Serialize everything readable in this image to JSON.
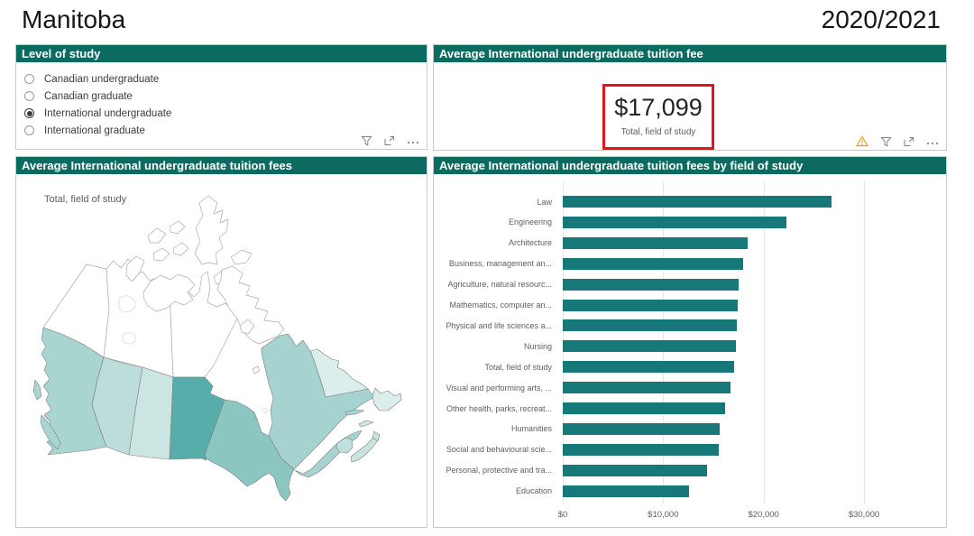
{
  "page": {
    "title": "Manitoba",
    "year": "2020/2021"
  },
  "colors": {
    "header_bg": "#0D6A60",
    "bar": "#17787A",
    "panel_border": "#C9C9C9",
    "highlight_box": "#E6131E",
    "warning_icon": "#E2A400",
    "icon_gray": "#808080",
    "territory_outline": "#ABABAB",
    "province_outline": "#7E7E7E"
  },
  "panels": {
    "level_of_study": {
      "title": "Level of study",
      "options": [
        {
          "label": "Canadian undergraduate",
          "selected": false
        },
        {
          "label": "Canadian graduate",
          "selected": false
        },
        {
          "label": "International undergraduate",
          "selected": true
        },
        {
          "label": "International graduate",
          "selected": false
        }
      ],
      "icons": [
        "filter-icon",
        "focus-mode-icon",
        "more-options-icon"
      ]
    },
    "fee_card": {
      "title": "Average International undergraduate tuition fee",
      "value": "$17,099",
      "caption": "Total, field of study",
      "icons": [
        "warning-icon",
        "filter-icon",
        "focus-mode-icon",
        "more-options-icon"
      ]
    },
    "map": {
      "title": "Average International undergraduate tuition fees",
      "caption": "Total, field of study",
      "regions": {
        "manitoba": "#57ADA9",
        "ontario": "#8BC6C1",
        "quebec": "#A6D3CF",
        "british-columbia": "#A9D5D1",
        "alberta": "#BCDDD9",
        "saskatchewan": "#CBE5E2",
        "new-brunswick": "#BFE0DC",
        "nova-scotia": "#C8E4E0",
        "prince-edward-island": "#D2E8E5",
        "newfoundland-and-labrador": "#DCEEEB",
        "yukon": "#FFFFFF",
        "northwest-territories": "#FFFFFF",
        "nunavut": "#FFFFFF"
      }
    },
    "bar_chart": {
      "title": "Average International undergraduate tuition fees by field of study"
    }
  },
  "chart_data": {
    "type": "bar",
    "orientation": "horizontal",
    "title": "Average International undergraduate tuition fees by field of study",
    "categories": [
      "Law",
      "Engineering",
      "Architecture",
      "Business, management an...",
      "Agriculture, natural resourc...",
      "Mathematics, computer an...",
      "Physical and life sciences a...",
      "Nursing",
      "Total, field of study",
      "Visual and performing arts, ...",
      "Other health, parks, recreat...",
      "Humanities",
      "Social and behavioural scie...",
      "Personal, protective and tra...",
      "Education"
    ],
    "values": [
      26800,
      22250,
      18450,
      18000,
      17550,
      17400,
      17350,
      17250,
      17099,
      16700,
      16150,
      15650,
      15500,
      14350,
      12550
    ],
    "xlim": [
      0,
      30000
    ],
    "x_ticks": [
      {
        "label": "$0",
        "value": 0
      },
      {
        "label": "$10,000",
        "value": 10000
      },
      {
        "label": "$20,000",
        "value": 20000
      },
      {
        "label": "$30,000",
        "value": 30000
      }
    ],
    "bar_color": "#17787A",
    "xlabel": "",
    "ylabel": ""
  }
}
